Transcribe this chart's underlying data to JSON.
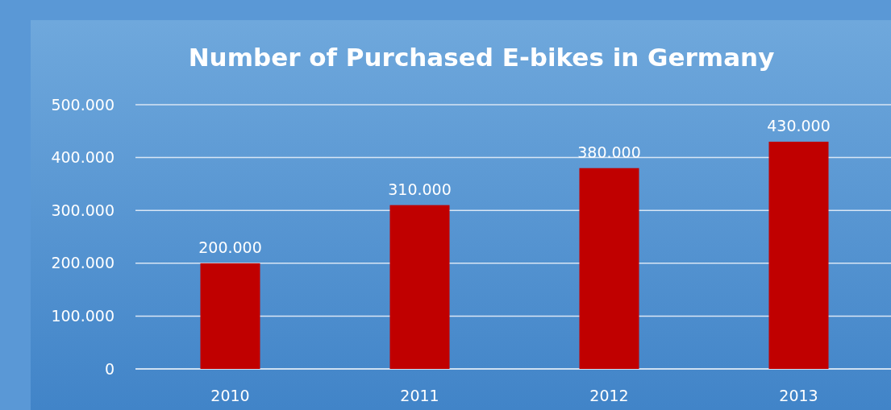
{
  "chart_data": {
    "type": "bar",
    "title": "Number of Purchased E-bikes in Germany",
    "categories": [
      "2010",
      "2011",
      "2012",
      "2013"
    ],
    "values": [
      200000,
      310000,
      380000,
      430000
    ],
    "value_labels": [
      "200.000",
      "310.000",
      "380.000",
      "430.000"
    ],
    "color": "#c00000",
    "ylim": [
      0,
      500000
    ],
    "yticks": [
      {
        "value": 0,
        "label": "0"
      },
      {
        "value": 100000,
        "label": "100.000"
      },
      {
        "value": 200000,
        "label": "200.000"
      },
      {
        "value": 300000,
        "label": "300.000"
      },
      {
        "value": 400000,
        "label": "400.000"
      },
      {
        "value": 500000,
        "label": "500.000"
      }
    ],
    "grid": "y"
  }
}
